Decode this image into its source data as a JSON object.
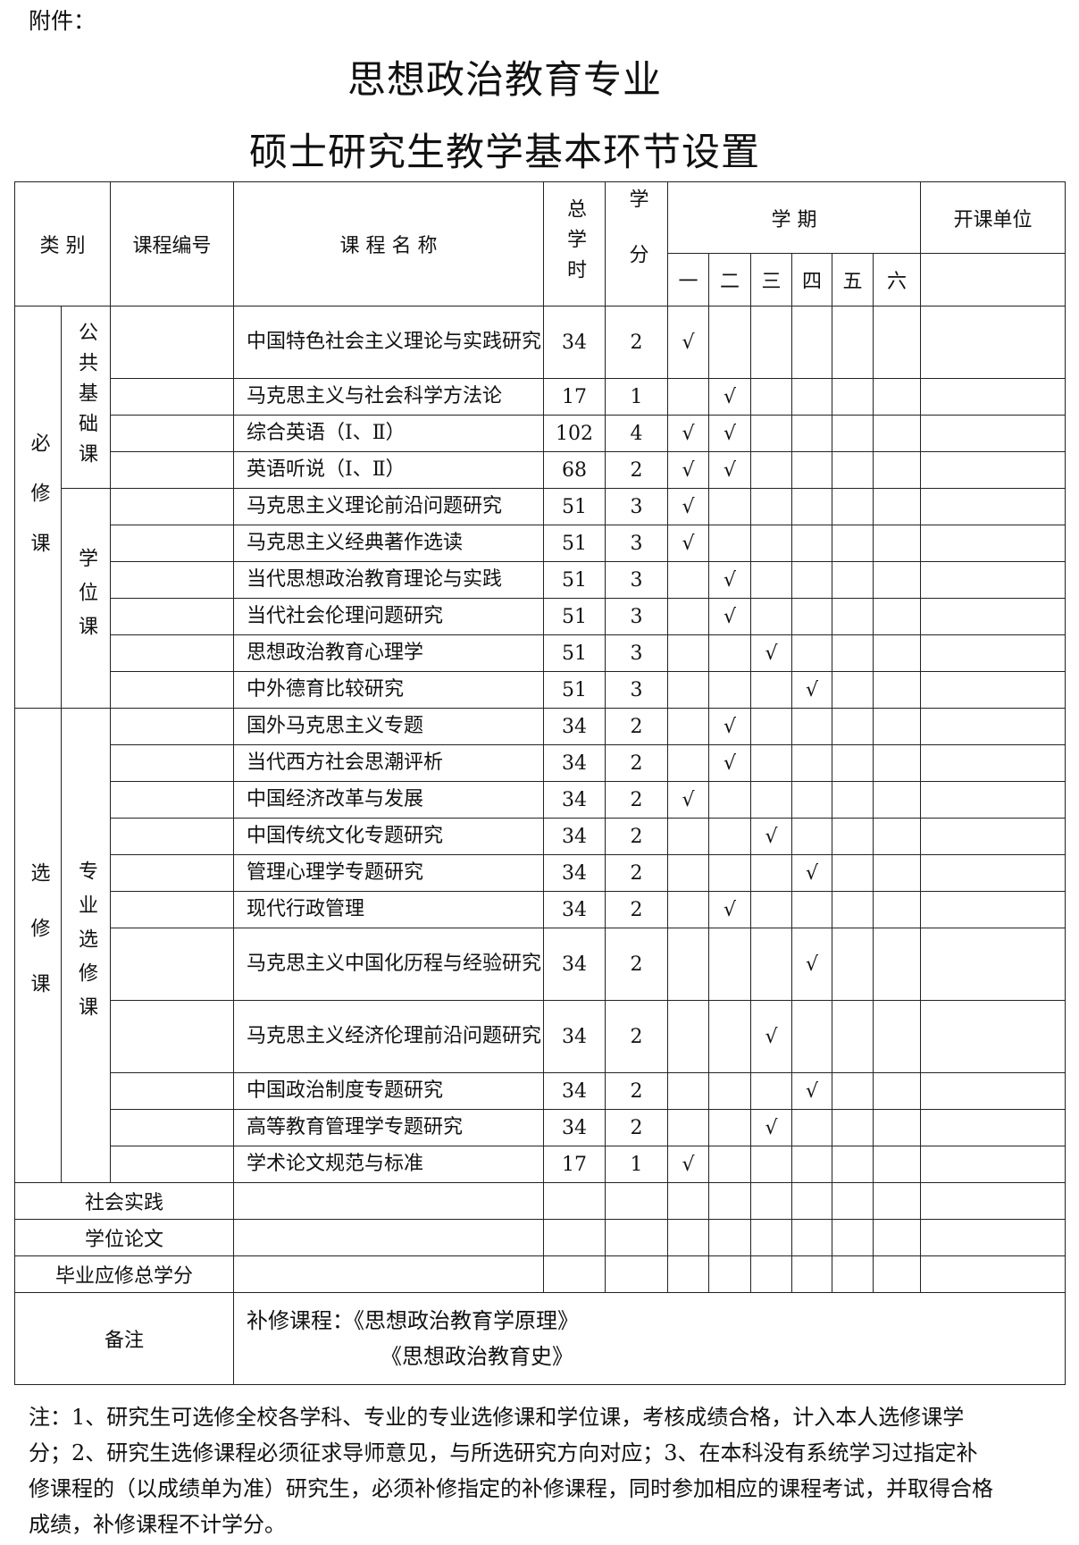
{
  "attachment_label": "附件：",
  "title_line1": "思想政治教育专业",
  "title_line2": "硕士研究生教学基本环节设置",
  "headers": {
    "category": "类 别",
    "code": "课程编号",
    "name": "课 程 名 称",
    "hours": "总学时",
    "credits": "学分",
    "semester": "学 期",
    "semesters": [
      "一",
      "二",
      "三",
      "四",
      "五",
      "六"
    ],
    "unit": "开课单位"
  },
  "check_mark": "√",
  "categories": [
    {
      "label": "必修课",
      "groups": [
        {
          "label": "公共基础课",
          "count": 4
        },
        {
          "label": "学位课",
          "count": 6
        }
      ]
    },
    {
      "label": "选修课",
      "groups": [
        {
          "label": "专业选修课",
          "count": 11
        }
      ]
    }
  ],
  "courses": [
    {
      "name": "中国特色社会主义理论与实践研究",
      "hours": "34",
      "credits": "2",
      "terms": [
        1
      ]
    },
    {
      "name": "马克思主义与社会科学方法论",
      "hours": "17",
      "credits": "1",
      "terms": [
        2
      ]
    },
    {
      "name": "综合英语（Ⅰ、Ⅱ）",
      "hours": "102",
      "credits": "4",
      "terms": [
        1,
        2
      ]
    },
    {
      "name": "英语听说（Ⅰ、Ⅱ）",
      "hours": "68",
      "credits": "2",
      "terms": [
        1,
        2
      ]
    },
    {
      "name": "马克思主义理论前沿问题研究",
      "hours": "51",
      "credits": "3",
      "terms": [
        1
      ]
    },
    {
      "name": "马克思主义经典著作选读",
      "hours": "51",
      "credits": "3",
      "terms": [
        1
      ]
    },
    {
      "name": "当代思想政治教育理论与实践",
      "hours": "51",
      "credits": "3",
      "terms": [
        2
      ]
    },
    {
      "name": "当代社会伦理问题研究",
      "hours": "51",
      "credits": "3",
      "terms": [
        2
      ]
    },
    {
      "name": "思想政治教育心理学",
      "hours": "51",
      "credits": "3",
      "terms": [
        3
      ]
    },
    {
      "name": "中外德育比较研究",
      "hours": "51",
      "credits": "3",
      "terms": [
        4
      ]
    },
    {
      "name": "国外马克思主义专题",
      "hours": "34",
      "credits": "2",
      "terms": [
        2
      ]
    },
    {
      "name": "当代西方社会思潮评析",
      "hours": "34",
      "credits": "2",
      "terms": [
        2
      ]
    },
    {
      "name": "中国经济改革与发展",
      "hours": "34",
      "credits": "2",
      "terms": [
        1
      ]
    },
    {
      "name": "中国传统文化专题研究",
      "hours": "34",
      "credits": "2",
      "terms": [
        3
      ]
    },
    {
      "name": "管理心理学专题研究",
      "hours": "34",
      "credits": "2",
      "terms": [
        4
      ]
    },
    {
      "name": "现代行政管理",
      "hours": "34",
      "credits": "2",
      "terms": [
        2
      ]
    },
    {
      "name": "马克思主义中国化历程与经验研究",
      "hours": "34",
      "credits": "2",
      "terms": [
        4
      ]
    },
    {
      "name": "马克思主义经济伦理前沿问题研究",
      "hours": "34",
      "credits": "2",
      "terms": [
        3
      ]
    },
    {
      "name": "中国政治制度专题研究",
      "hours": "34",
      "credits": "2",
      "terms": [
        4
      ]
    },
    {
      "name": "高等教育管理学专题研究",
      "hours": "34",
      "credits": "2",
      "terms": [
        3
      ]
    },
    {
      "name": "学术论文规范与标准",
      "hours": "17",
      "credits": "1",
      "terms": [
        1
      ]
    }
  ],
  "summary_rows": [
    "社会实践",
    "学位论文",
    "毕业应修总学分"
  ],
  "remarks": {
    "label": "备注",
    "line1": "补修课程：《思想政治教育学原理》",
    "line2": "《思想政治教育史》"
  },
  "note": "注：1、研究生可选修全校各学科、专业的专业选修课和学位课，考核成绩合格，计入本人选修课学分；2、研究生选修课程必须征求导师意见，与所选研究方向对应；3、在本科没有系统学习过指定补修课程的（以成绩单为准）研究生，必须补修指定的补修课程，同时参加相应的课程考试，并取得合格成绩，补修课程不计学分。"
}
